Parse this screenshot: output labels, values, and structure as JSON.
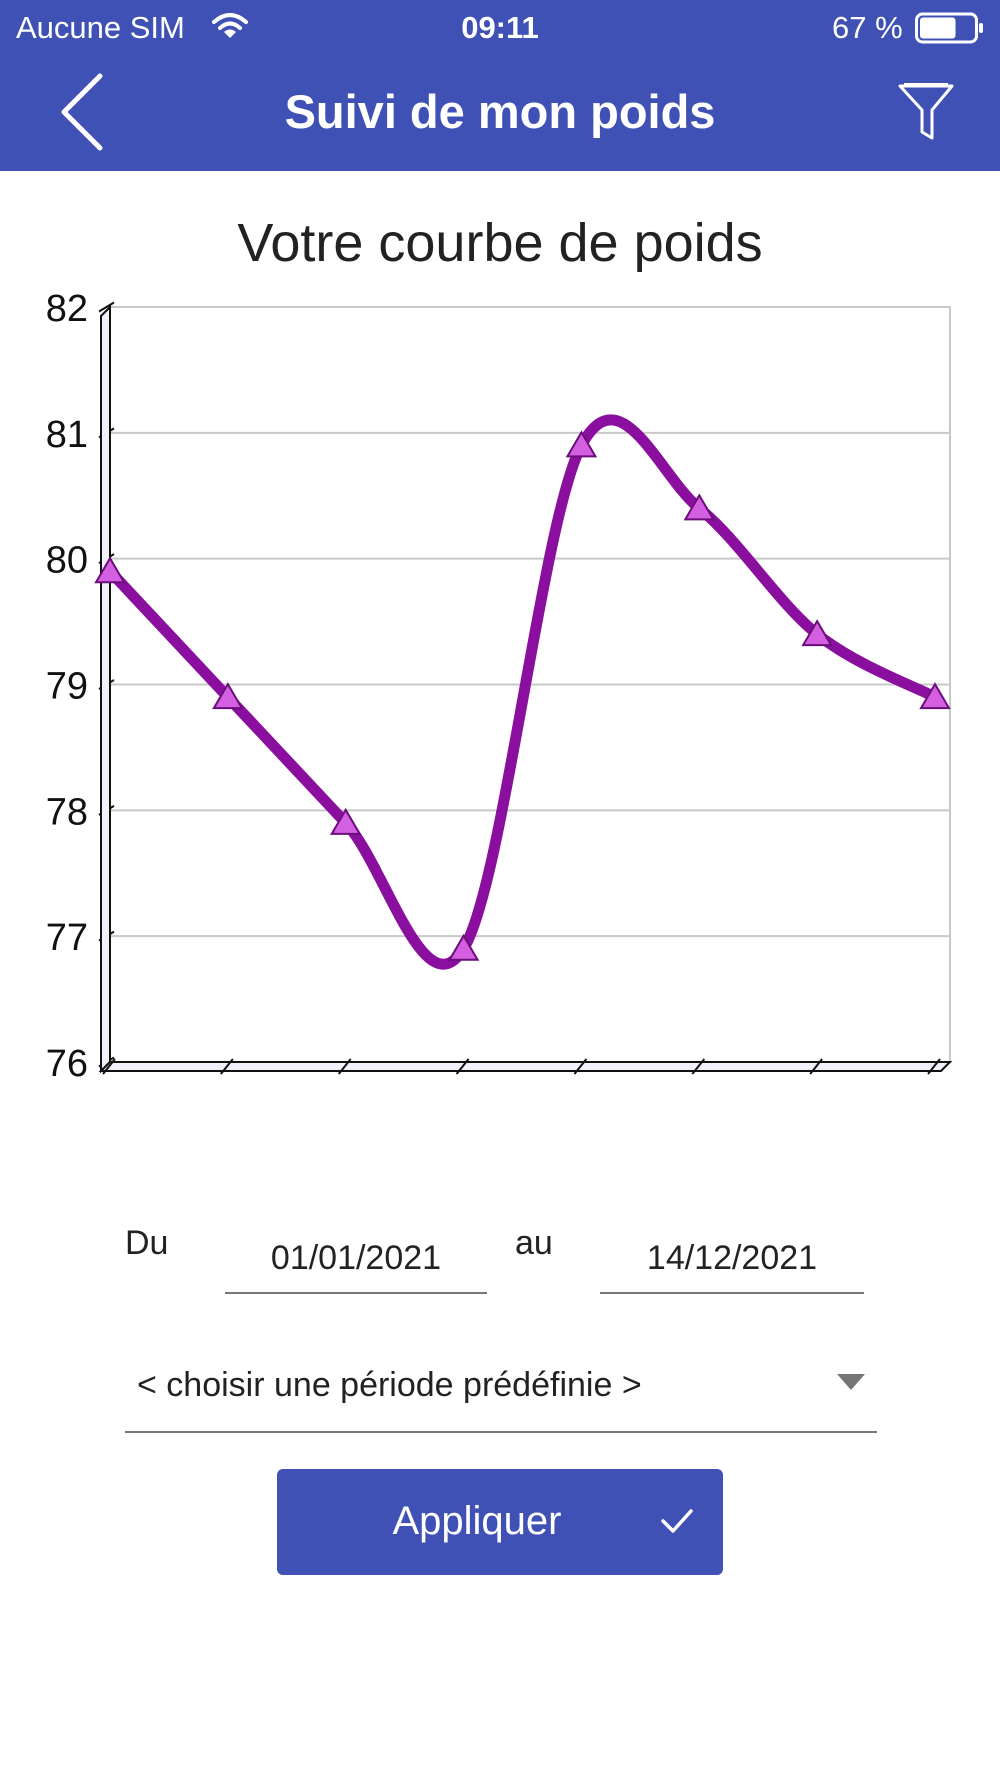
{
  "status_bar": {
    "carrier": "Aucune SIM",
    "time": "09:11",
    "battery_percent": "67 %",
    "battery_level": 0.67
  },
  "header": {
    "title": "Suivi de mon poids",
    "back_icon": "chevron-left-icon",
    "filter_icon": "funnel-icon",
    "color": "#3f51b5"
  },
  "chart_data": {
    "type": "line",
    "title": "Votre courbe de poids",
    "xlabel": "",
    "ylabel": "",
    "x": [
      1,
      2,
      3,
      4,
      5,
      6,
      7,
      8
    ],
    "series": [
      {
        "values": [
          79.9,
          78.9,
          77.9,
          76.9,
          80.9,
          80.4,
          79.4,
          78.9
        ],
        "color": "#8b0f9e",
        "marker": "triangle",
        "marker_color": "#d45fe0"
      }
    ],
    "ylim": [
      76,
      82
    ],
    "yticks": [
      "76",
      "77",
      "78",
      "79",
      "80",
      "81",
      "82"
    ],
    "xtick_labels": [],
    "grid": true,
    "style": "3d-axes"
  },
  "filters": {
    "from_label": "Du",
    "from_value": "01/01/2021",
    "to_label": "au",
    "to_value": "14/12/2021",
    "period_placeholder": "< choisir une période prédéfinie >",
    "apply_label": "Appliquer"
  }
}
